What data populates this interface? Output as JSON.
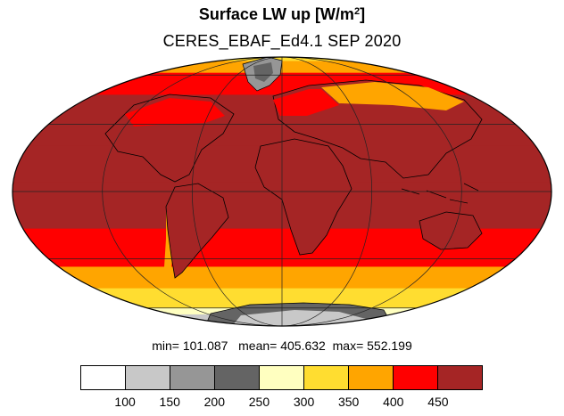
{
  "title": {
    "main": "Surface LW up [W/m",
    "sup": "2",
    "close": "]"
  },
  "subtitle": "CERES_EBAF_Ed4.1 SEP 2020",
  "stats": {
    "min_label": "min=",
    "min": "101.087",
    "mean_label": "mean=",
    "mean": "405.632",
    "max_label": "max=",
    "max": "552.199"
  },
  "colorbar": {
    "colors": [
      "#ffffff",
      "#c8c8c8",
      "#969696",
      "#646464",
      "#ffffc0",
      "#ffdd30",
      "#ffa500",
      "#ff0000",
      "#a52525"
    ],
    "labels": [
      "100",
      "150",
      "200",
      "250",
      "300",
      "350",
      "400",
      "450"
    ]
  },
  "map": {
    "projection": "Mollweide",
    "bands": [
      {
        "lat_from": 90,
        "lat_to": 76,
        "color": "#ffdd30"
      },
      {
        "lat_from": 76,
        "lat_to": 62,
        "color": "#ffa500"
      },
      {
        "lat_from": 62,
        "lat_to": 46,
        "color": "#ff0000"
      },
      {
        "lat_from": 46,
        "lat_to": 20,
        "color": "#a52525"
      },
      {
        "lat_from": 20,
        "lat_to": 4,
        "color": "#a52525"
      },
      {
        "lat_from": 4,
        "lat_to": -16,
        "color": "#a52525"
      },
      {
        "lat_from": -16,
        "lat_to": -34,
        "color": "#ff0000"
      },
      {
        "lat_from": -34,
        "lat_to": -46,
        "color": "#ffa500"
      },
      {
        "lat_from": -46,
        "lat_to": -60,
        "color": "#ffdd30"
      },
      {
        "lat_from": -60,
        "lat_to": -66,
        "color": "#ffffc0"
      },
      {
        "lat_from": -66,
        "lat_to": -90,
        "color": "#c8c8c8"
      }
    ]
  }
}
